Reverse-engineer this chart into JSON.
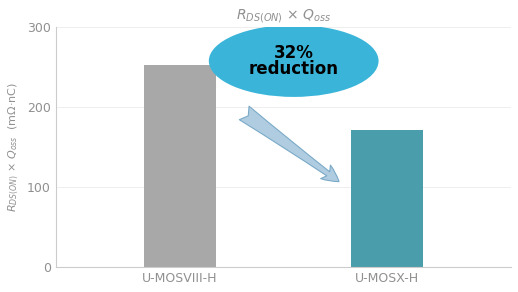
{
  "categories": [
    "U-MOSVIII-H",
    "U-MOSX-H"
  ],
  "values": [
    253,
    172
  ],
  "bar_colors": [
    "#a8a8a8",
    "#4a9eab"
  ],
  "ylim": [
    0,
    300
  ],
  "yticks": [
    0,
    100,
    200,
    300
  ],
  "reduction_text_line1": "32%",
  "reduction_text_line2": "reduction",
  "ellipse_color": "#3ab5d9",
  "arrow_color": "#b0cce0",
  "arrow_edge_color": "#7aaac8",
  "background_color": "#ffffff",
  "title_color": "#909090",
  "ylabel_color": "#909090",
  "tick_color": "#909090",
  "bar_width": 0.35,
  "title_fontsize": 10,
  "ylabel_fontsize": 8,
  "tick_fontsize": 9,
  "xtick_fontsize": 9
}
